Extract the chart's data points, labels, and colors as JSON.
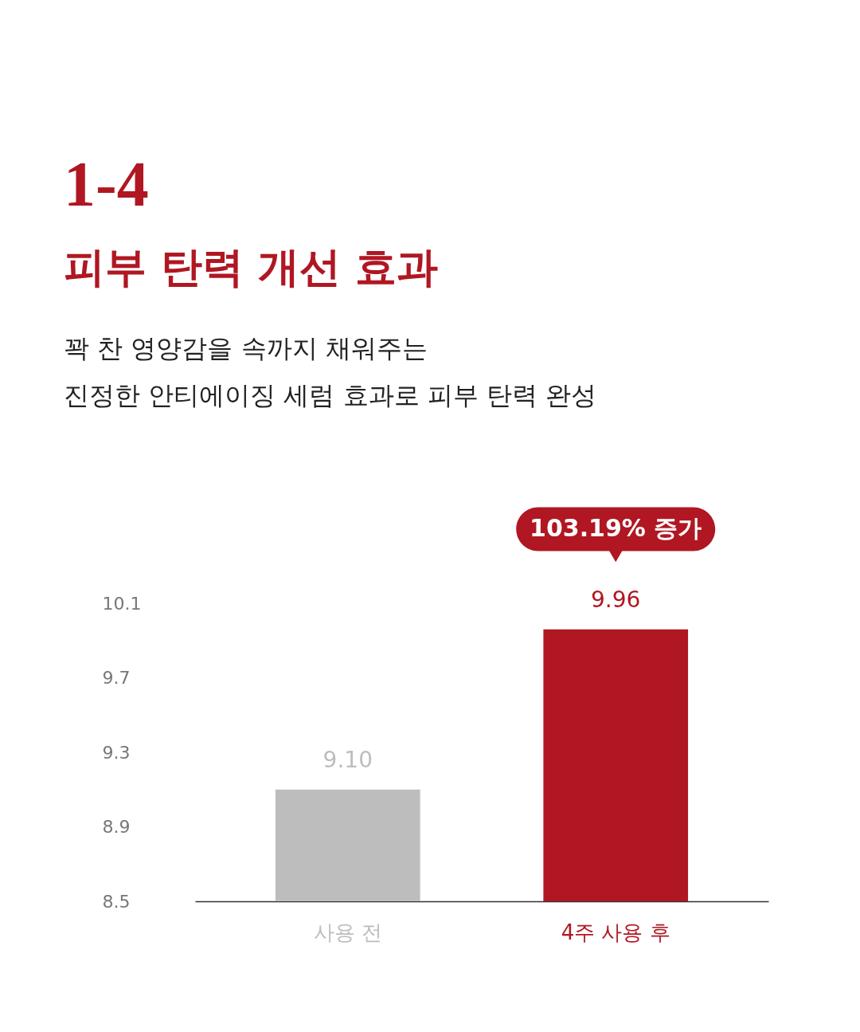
{
  "chart_data": {
    "type": "bar",
    "title": "피부 탄력 개선 효과",
    "subtitle": "꽉 찬 영양감을 속까지 채워주는\n진정한 안티에이징 세럼 효과로 피부 탄력 완성",
    "annotations": [
      "1-4",
      "103.19% 증가"
    ],
    "categories": [
      "사용 전",
      "4주 사용 후"
    ],
    "values": [
      9.1,
      9.96
    ],
    "colors": [
      "#bdbdbd",
      "#b01722"
    ],
    "value_labels": [
      "9.10",
      "9.96"
    ],
    "ylim": [
      8.5,
      10.1
    ],
    "yticks": [
      8.5,
      8.9,
      9.3,
      9.7,
      10.1
    ]
  }
}
